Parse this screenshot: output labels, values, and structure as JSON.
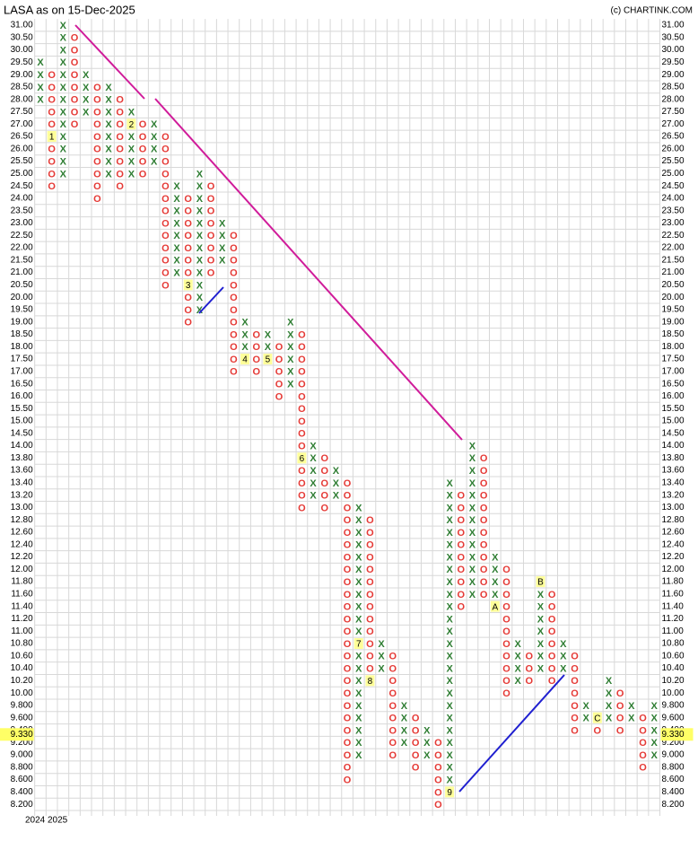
{
  "chart_data": {
    "type": "pnf",
    "title": "LASA as on 15-Dec-2025",
    "credit": "(c) CHARTINK.COM",
    "x_labels": [
      "2024",
      "2025"
    ],
    "current_price": {
      "value": 9.33,
      "label": "9.330"
    },
    "x_color": "#2e7d32",
    "o_color": "#e53935",
    "yticks": [
      {
        "value": 31,
        "label": "31.00"
      },
      {
        "value": 30.5,
        "label": "30.50"
      },
      {
        "value": 30,
        "label": "30.00"
      },
      {
        "value": 29.5,
        "label": "29.50"
      },
      {
        "value": 29,
        "label": "29.00"
      },
      {
        "value": 28.5,
        "label": "28.50"
      },
      {
        "value": 28,
        "label": "28.00"
      },
      {
        "value": 27.5,
        "label": "27.50"
      },
      {
        "value": 27,
        "label": "27.00"
      },
      {
        "value": 26.5,
        "label": "26.50"
      },
      {
        "value": 26,
        "label": "26.00"
      },
      {
        "value": 25.5,
        "label": "25.50"
      },
      {
        "value": 25,
        "label": "25.00"
      },
      {
        "value": 24.5,
        "label": "24.50"
      },
      {
        "value": 24,
        "label": "24.00"
      },
      {
        "value": 23.5,
        "label": "23.50"
      },
      {
        "value": 23,
        "label": "23.00"
      },
      {
        "value": 22.5,
        "label": "22.50"
      },
      {
        "value": 22,
        "label": "22.00"
      },
      {
        "value": 21.5,
        "label": "21.50"
      },
      {
        "value": 21,
        "label": "21.00"
      },
      {
        "value": 20.5,
        "label": "20.50"
      },
      {
        "value": 20,
        "label": "20.00"
      },
      {
        "value": 19.5,
        "label": "19.50"
      },
      {
        "value": 19,
        "label": "19.00"
      },
      {
        "value": 18.5,
        "label": "18.50"
      },
      {
        "value": 18,
        "label": "18.00"
      },
      {
        "value": 17.5,
        "label": "17.50"
      },
      {
        "value": 17,
        "label": "17.00"
      },
      {
        "value": 16.5,
        "label": "16.50"
      },
      {
        "value": 16,
        "label": "16.00"
      },
      {
        "value": 15.5,
        "label": "15.50"
      },
      {
        "value": 15,
        "label": "15.00"
      },
      {
        "value": 14.5,
        "label": "14.50"
      },
      {
        "value": 14,
        "label": "14.00"
      },
      {
        "value": 13.8,
        "label": "13.80"
      },
      {
        "value": 13.6,
        "label": "13.60"
      },
      {
        "value": 13.4,
        "label": "13.40"
      },
      {
        "value": 13.2,
        "label": "13.20"
      },
      {
        "value": 13,
        "label": "13.00"
      },
      {
        "value": 12.8,
        "label": "12.80"
      },
      {
        "value": 12.6,
        "label": "12.60"
      },
      {
        "value": 12.4,
        "label": "12.40"
      },
      {
        "value": 12.2,
        "label": "12.20"
      },
      {
        "value": 12,
        "label": "12.00"
      },
      {
        "value": 11.8,
        "label": "11.80"
      },
      {
        "value": 11.6,
        "label": "11.60"
      },
      {
        "value": 11.4,
        "label": "11.40"
      },
      {
        "value": 11.2,
        "label": "11.20"
      },
      {
        "value": 11,
        "label": "11.00"
      },
      {
        "value": 10.8,
        "label": "10.80"
      },
      {
        "value": 10.6,
        "label": "10.60"
      },
      {
        "value": 10.4,
        "label": "10.40"
      },
      {
        "value": 10.2,
        "label": "10.20"
      },
      {
        "value": 10,
        "label": "10.00"
      },
      {
        "value": 9.8,
        "label": "9.800"
      },
      {
        "value": 9.6,
        "label": "9.600"
      },
      {
        "value": 9.4,
        "label": "9.400"
      },
      {
        "value": 9.2,
        "label": "9.200"
      },
      {
        "value": 9,
        "label": "9.000"
      },
      {
        "value": 8.8,
        "label": "8.800"
      },
      {
        "value": 8.6,
        "label": "8.600"
      },
      {
        "value": 8.4,
        "label": "8.400"
      },
      {
        "value": 8.2,
        "label": "8.200"
      }
    ],
    "columns": [
      {
        "type": "X",
        "high": 29.5,
        "low": 28
      },
      {
        "type": "O",
        "high": 29,
        "low": 24.5,
        "marker": {
          "label": "1",
          "value": 26.5
        }
      },
      {
        "type": "X",
        "high": 31,
        "low": 25
      },
      {
        "type": "O",
        "high": 30.5,
        "low": 27
      },
      {
        "type": "X",
        "high": 29,
        "low": 27.5
      },
      {
        "type": "O",
        "high": 28.5,
        "low": 24
      },
      {
        "type": "X",
        "high": 28.5,
        "low": 25
      },
      {
        "type": "O",
        "high": 28,
        "low": 24.5
      },
      {
        "type": "X",
        "high": 27.5,
        "low": 25,
        "marker": {
          "label": "2",
          "value": 27
        }
      },
      {
        "type": "O",
        "high": 27,
        "low": 25
      },
      {
        "type": "X",
        "high": 27,
        "low": 25.5
      },
      {
        "type": "O",
        "high": 26.5,
        "low": 20.5
      },
      {
        "type": "X",
        "high": 24.5,
        "low": 21
      },
      {
        "type": "O",
        "high": 24,
        "low": 19,
        "marker": {
          "label": "3",
          "value": 20.5
        }
      },
      {
        "type": "X",
        "high": 25,
        "low": 19.5
      },
      {
        "type": "O",
        "high": 24.5,
        "low": 21
      },
      {
        "type": "X",
        "high": 23,
        "low": 21.5
      },
      {
        "type": "O",
        "high": 22.5,
        "low": 17
      },
      {
        "type": "X",
        "high": 19,
        "low": 17.5,
        "marker": {
          "label": "4",
          "value": 17.5
        }
      },
      {
        "type": "O",
        "high": 18.5,
        "low": 17
      },
      {
        "type": "X",
        "high": 18.5,
        "low": 17.5,
        "marker": {
          "label": "5",
          "value": 17.5
        }
      },
      {
        "type": "O",
        "high": 18,
        "low": 16
      },
      {
        "type": "X",
        "high": 19,
        "low": 16.5
      },
      {
        "type": "O",
        "high": 18.5,
        "low": 13,
        "marker": {
          "label": "6",
          "value": 13.8
        }
      },
      {
        "type": "X",
        "high": 14,
        "low": 13.2
      },
      {
        "type": "O",
        "high": 13.8,
        "low": 13
      },
      {
        "type": "X",
        "high": 13.6,
        "low": 13.2
      },
      {
        "type": "O",
        "high": 13.4,
        "low": 8.6
      },
      {
        "type": "X",
        "high": 13,
        "low": 9,
        "marker": {
          "label": "7",
          "value": 10.8
        }
      },
      {
        "type": "O",
        "high": 12.8,
        "low": 10.2,
        "marker": {
          "label": "8",
          "value": 10.2
        }
      },
      {
        "type": "X",
        "high": 10.8,
        "low": 10.4
      },
      {
        "type": "O",
        "high": 10.6,
        "low": 9
      },
      {
        "type": "X",
        "high": 9.8,
        "low": 9.2
      },
      {
        "type": "O",
        "high": 9.6,
        "low": 8.8
      },
      {
        "type": "X",
        "high": 9.4,
        "low": 9
      },
      {
        "type": "O",
        "high": 9.2,
        "low": 8.2
      },
      {
        "type": "X",
        "high": 13.4,
        "low": 8.4,
        "marker": {
          "label": "9",
          "value": 8.4
        }
      },
      {
        "type": "O",
        "high": 13.2,
        "low": 11.4
      },
      {
        "type": "X",
        "high": 14,
        "low": 11.6
      },
      {
        "type": "O",
        "high": 13.8,
        "low": 11.6
      },
      {
        "type": "X",
        "high": 12.2,
        "low": 11.4,
        "marker": {
          "label": "A",
          "value": 11.4
        }
      },
      {
        "type": "O",
        "high": 12,
        "low": 10
      },
      {
        "type": "X",
        "high": 10.8,
        "low": 10.2
      },
      {
        "type": "O",
        "high": 10.6,
        "low": 10.2
      },
      {
        "type": "X",
        "high": 11.8,
        "low": 10.4,
        "marker": {
          "label": "B",
          "value": 11.8
        }
      },
      {
        "type": "O",
        "high": 11.6,
        "low": 10.2
      },
      {
        "type": "X",
        "high": 10.8,
        "low": 10.4
      },
      {
        "type": "O",
        "high": 10.6,
        "low": 9.4
      },
      {
        "type": "X",
        "high": 9.8,
        "low": 9.6
      },
      {
        "type": "O",
        "high": 9.6,
        "low": 9.4,
        "marker": {
          "label": "C",
          "value": 9.6
        }
      },
      {
        "type": "X",
        "high": 10.2,
        "low": 9.6
      },
      {
        "type": "O",
        "high": 10,
        "low": 9.4
      },
      {
        "type": "X",
        "high": 9.8,
        "low": 9.6
      },
      {
        "type": "O",
        "high": 9.6,
        "low": 8.8
      },
      {
        "type": "X",
        "high": 9.8,
        "low": 9
      }
    ]
  }
}
